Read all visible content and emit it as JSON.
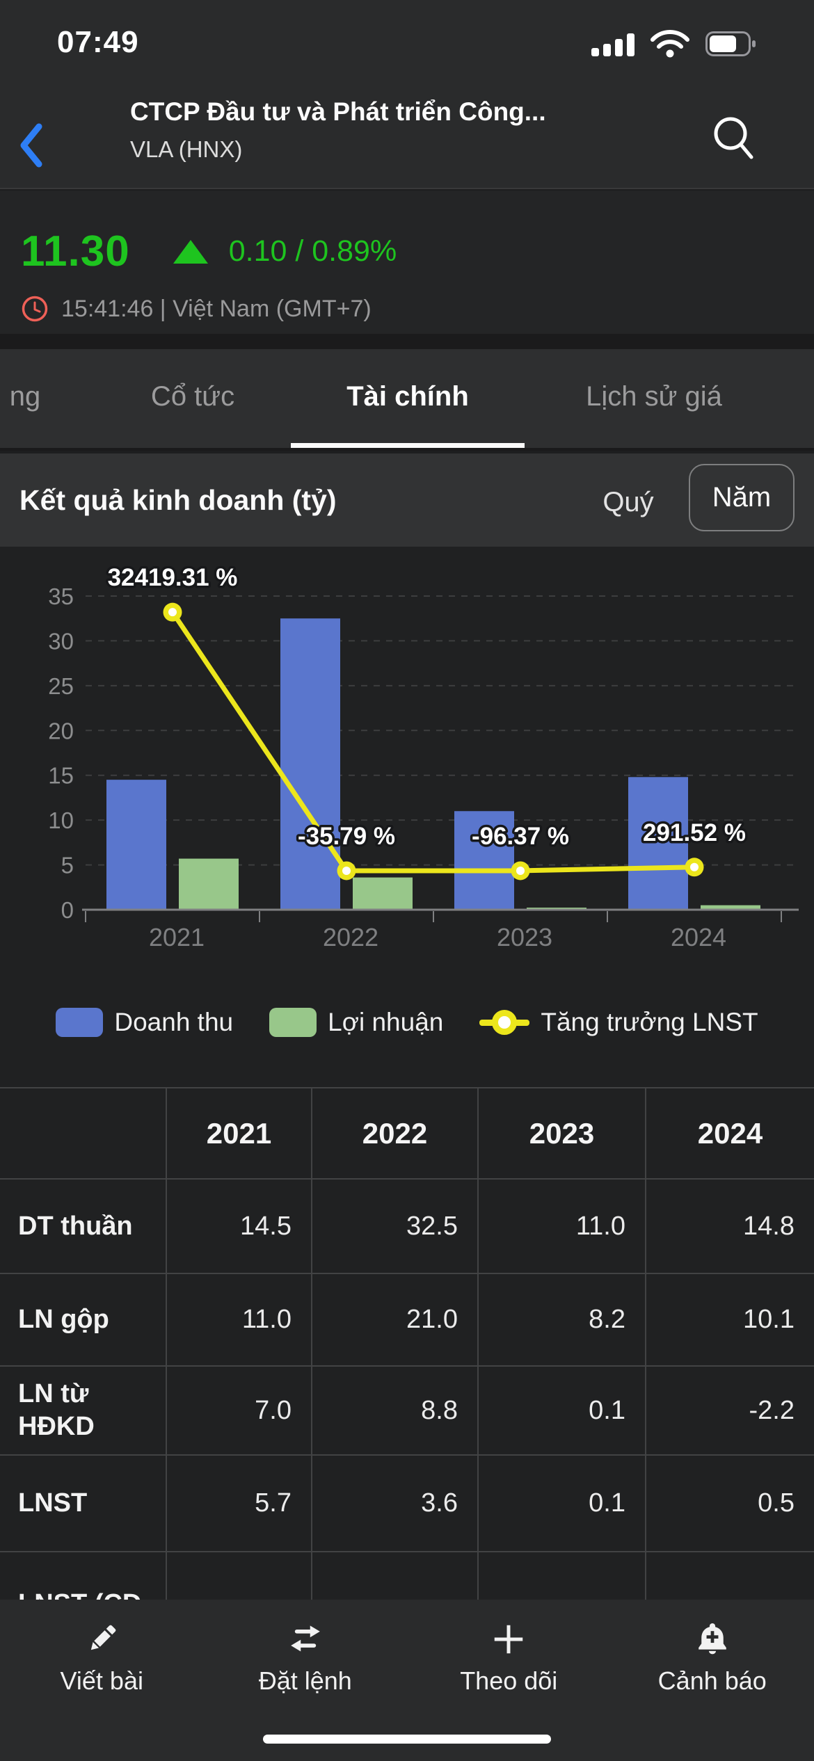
{
  "status_bar": {
    "time": "07:49"
  },
  "header": {
    "title": "CTCP Đầu tư và Phát triển Công...",
    "subtitle": "VLA (HNX)"
  },
  "quote": {
    "price": "11.30",
    "change": "0.10 / 0.89%",
    "direction": "up",
    "session_info": "15:41:46 | Việt Nam (GMT+7)"
  },
  "colors": {
    "price_up": "#1ec41f",
    "accent_blue": "#2e7ef5",
    "clock_red": "#ee6057",
    "tab_active_underline": "#fafafa"
  },
  "tabs": {
    "items": [
      {
        "label": "ng",
        "active": false
      },
      {
        "label": "Cổ tức",
        "active": false
      },
      {
        "label": "Tài chính",
        "active": true
      },
      {
        "label": "Lịch sử giá",
        "active": false
      }
    ]
  },
  "section_header": {
    "title": "Kết quả kinh doanh (tỷ)",
    "period_quarter": "Quý",
    "period_year": "Năm",
    "selected_period": "Năm"
  },
  "chart_data": {
    "type": "bar",
    "categories": [
      "2021",
      "2022",
      "2023",
      "2024"
    ],
    "series": [
      {
        "name": "Doanh thu",
        "type": "bar",
        "color": "#5a76cd",
        "values": [
          14.5,
          32.5,
          11.0,
          14.8
        ]
      },
      {
        "name": "Lợi nhuận",
        "type": "bar",
        "color": "#98c78a",
        "values": [
          5.7,
          3.6,
          0.1,
          0.5
        ]
      },
      {
        "name": "Tăng trưởng LNST",
        "type": "line",
        "color": "#ece61c",
        "point_labels": [
          "32419.31 %",
          "-35.79 %",
          "-96.37 %",
          "291.52 %"
        ],
        "display_values": [
          33.2,
          4.35,
          4.35,
          4.75
        ]
      }
    ],
    "title": "Kết quả kinh doanh (tỷ)",
    "xlabel": "",
    "ylabel": "",
    "ylim": [
      0,
      35
    ],
    "yticks": [
      0,
      5,
      10,
      15,
      20,
      25,
      30,
      35
    ],
    "grid": "dashed-horizontal",
    "legend_position": "bottom"
  },
  "table": {
    "columns": [
      "",
      "2021",
      "2022",
      "2023",
      "2024"
    ],
    "rows": [
      {
        "label": "DT thuần",
        "values": [
          "14.5",
          "32.5",
          "11.0",
          "14.8"
        ]
      },
      {
        "label": "LN gộp",
        "values": [
          "11.0",
          "21.0",
          "8.2",
          "10.1"
        ]
      },
      {
        "label": "LN từ HĐKD",
        "values": [
          "7.0",
          "8.8",
          "0.1",
          "-2.2"
        ]
      },
      {
        "label": "LNST",
        "values": [
          "5.7",
          "3.6",
          "0.1",
          "0.5"
        ]
      },
      {
        "label": "LNST (CĐ",
        "values": [
          "",
          "",
          "",
          ""
        ]
      }
    ]
  },
  "toolbar": {
    "items": [
      {
        "label": "Viết bài",
        "icon": "pencil-icon",
        "name": "write-post-button"
      },
      {
        "label": "Đặt lệnh",
        "icon": "swap-arrows-icon",
        "name": "place-order-button"
      },
      {
        "label": "Theo dõi",
        "icon": "plus-icon",
        "name": "follow-button"
      },
      {
        "label": "Cảnh báo",
        "icon": "bell-plus-icon",
        "name": "alert-button"
      }
    ]
  }
}
